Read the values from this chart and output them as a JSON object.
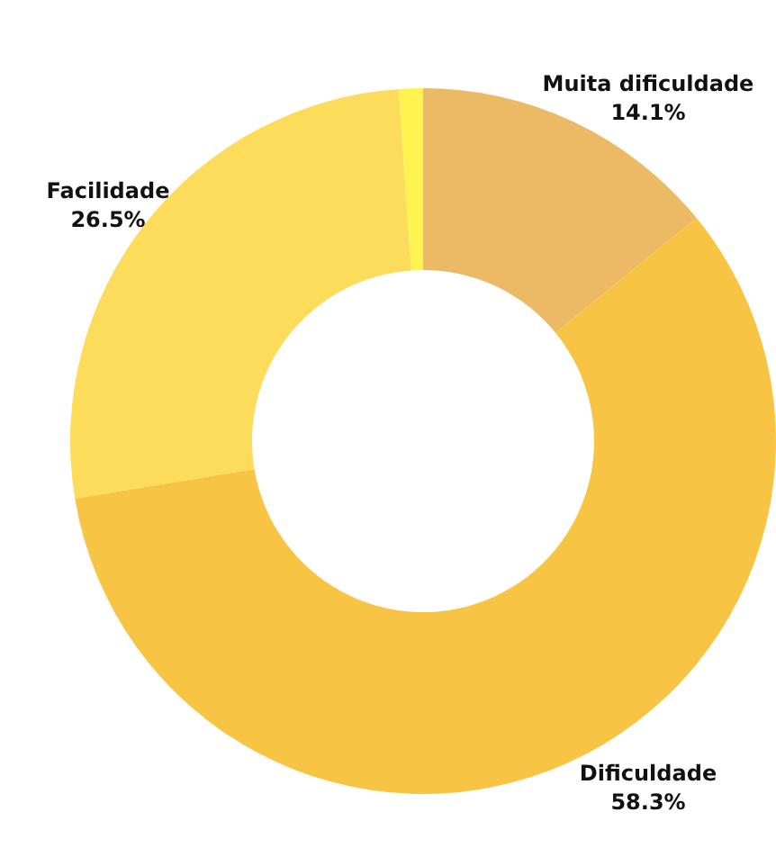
{
  "chart_data": {
    "type": "donut",
    "categories": [
      "Muita dificuldade",
      "Dificuldade",
      "Facilidade",
      null
    ],
    "values": [
      14.1,
      58.3,
      26.5,
      1.1
    ],
    "colors": [
      "#ecb964",
      "#f7c443",
      "#fddc5c",
      "#fff44f"
    ],
    "value_labels": [
      "14.1%",
      "58.3%",
      "26.5%",
      null
    ],
    "legend": false
  }
}
